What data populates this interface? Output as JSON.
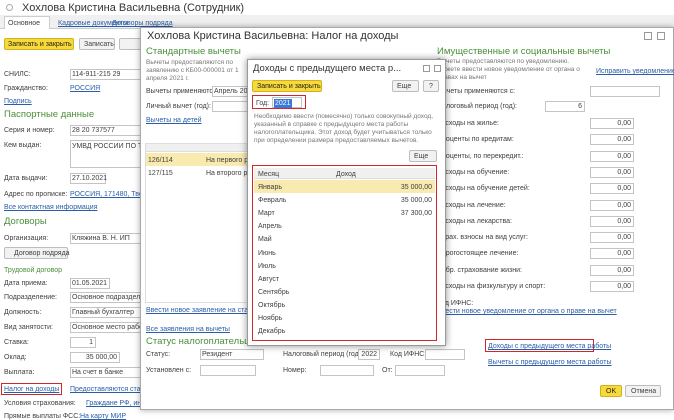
{
  "employee": {
    "title": "Хохлова Кристина Васильевна (Сотрудник)",
    "tabs": [
      "Основное",
      "Кадровые документы",
      "Договоры подряда"
    ],
    "buttons": [
      "Записать и закрыть",
      "Записать"
    ],
    "personal": [
      {
        "label": "СНИЛС:",
        "value": "114-911-215 29"
      },
      {
        "label": "Гражданство:",
        "value": "РОССИЯ"
      }
    ],
    "signature_link": "Подпись",
    "passport_title": "Паспортные данные",
    "passport": [
      {
        "label": "Серия и номер:",
        "value": "28 20 737577"
      },
      {
        "label": "Кем выдан:",
        "value": "УМВД РОССИИ ПО ТВЕР"
      },
      {
        "label": "Дата выдачи:",
        "value": "27.10.2021"
      },
      {
        "label": "Адрес по прописке:",
        "value": "РОССИЯ, 171480, Тверск"
      }
    ],
    "contacts_link": "Все контактная информация",
    "contracts_title": "Договоры",
    "organization": {
      "label": "Организация:",
      "value": "Кляжина В. Н. ИП"
    },
    "contract_button": "Договор подряда",
    "labor_title": "Трудовой договор",
    "labor": [
      {
        "label": "Дата приема:",
        "value": "01.05.2021"
      },
      {
        "label": "Подразделение:",
        "value": "Основное подразделение"
      },
      {
        "label": "Должность:",
        "value": "Главный бухгалтер"
      },
      {
        "label": "Вид занятости:",
        "value": "Основное место работы"
      },
      {
        "label": "Ставка:",
        "value": "1"
      },
      {
        "label": "Оклад:",
        "value": "35 000,00"
      },
      {
        "label": "Выплата:",
        "value": "На счет в банке"
      },
      {
        "label": "Налог на доходы",
        "value": "Предоставляются станда"
      },
      {
        "label": "Условия страхования:",
        "value": "Граждане РФ, инвалидность не установлена"
      },
      {
        "label": "Прямые выплаты ФСС:",
        "value": "На карту МИР"
      }
    ]
  },
  "tax": {
    "title": "Хохлова Кристина Васильевна: Налог на доходы",
    "standard": {
      "title": "Стандартные вычеты",
      "note": "Вычеты предоставляются по заявлению с КБ00-000001 от 1 апреля 2021 г.",
      "applies": {
        "label": "Вычеты применяются с:",
        "value": "Апрель 2021"
      },
      "personal_label": "Личный вычет (год):",
      "children_link": "Вычеты на детей",
      "children": [
        {
          "code": "126/114",
          "name": "На первого ребе"
        },
        {
          "code": "127/115",
          "name": "На второго ребе"
        }
      ],
      "new_app_link": "Ввести новое заявление на стандартн",
      "all_apps_link": "Все заявления на вычеты"
    },
    "status": {
      "title": "Статус налогоплательщика",
      "status_label": "Статус:",
      "status_value": "Резидент",
      "period_label": "Налоговый период (год):",
      "period_value": "2022",
      "ifns_label": "Код ИФНС:",
      "set_label": "Установлен с:",
      "number_label": "Номер:",
      "from_label": "От:"
    },
    "property": {
      "title": "Имущественные и социальные вычеты",
      "note": "Вычеты предоставляются по уведомлению. Можете ввести новое уведомление от органа о правах на вычет",
      "fix_link": "Исправить уведомление",
      "applies_label": "Вычеты применяются с:",
      "period_label": "Налоговый период (год):",
      "period_value": "6",
      "rows": [
        {
          "label": "Расходы на жилье:",
          "value": "0,00"
        },
        {
          "label": "Проценты по кредитам:",
          "value": "0,00"
        },
        {
          "label": "Проценты, по перекредит.:",
          "value": "0,00"
        },
        {
          "label": "Расходы на обучение:",
          "value": "0,00"
        },
        {
          "label": "Расходы на обучение детей:",
          "value": "0,00"
        },
        {
          "label": "Расходы на лечение:",
          "value": "0,00"
        },
        {
          "label": "Расходы на лекарства:",
          "value": "0,00"
        },
        {
          "label": "Страх. взносы на вид услуг:",
          "value": "0,00"
        },
        {
          "label": "Дорогостоящее лечение:",
          "value": "0,00"
        },
        {
          "label": "Добр. страхование жизни:",
          "value": "0,00"
        },
        {
          "label": "Расходы на физкультуру и спорт:",
          "value": "0,00"
        }
      ],
      "ifns_label": "Код ИФНС:",
      "new_notice_link": "Ввести новое уведомление от органа о праве на вычет",
      "prev_income_link": "Доходы с предыдущего места работы",
      "prev_deductions_link": "Вычеты с предыдущего места работы"
    },
    "buttons": [
      "OK",
      "Отмена"
    ]
  },
  "prev": {
    "title": "Доходы с предыдущего места р...",
    "save_button": "Записать и закрыть",
    "more_button": "Еще",
    "help_button": "?",
    "year_label": "Год:",
    "year": "2021",
    "note": "Необходимо ввести (помесячно) только совокупный доход, указанный в справке с предыдущего места работы налогоплательщика. Этот доход будет учитываться только при определении размера предоставляемых вычетов.",
    "table_more": "Еще",
    "columns": [
      "Месяц",
      "Доход"
    ],
    "rows": [
      {
        "month": "Январь",
        "income": "35 000,00"
      },
      {
        "month": "Февраль",
        "income": "35 000,00"
      },
      {
        "month": "Март",
        "income": "37 300,00"
      },
      {
        "month": "Апрель"
      },
      {
        "month": "Май"
      },
      {
        "month": "Июнь"
      },
      {
        "month": "Июль"
      },
      {
        "month": "Август"
      },
      {
        "month": "Сентябрь"
      },
      {
        "month": "Октябрь"
      },
      {
        "month": "Ноябрь"
      },
      {
        "month": "Декабрь"
      }
    ]
  }
}
